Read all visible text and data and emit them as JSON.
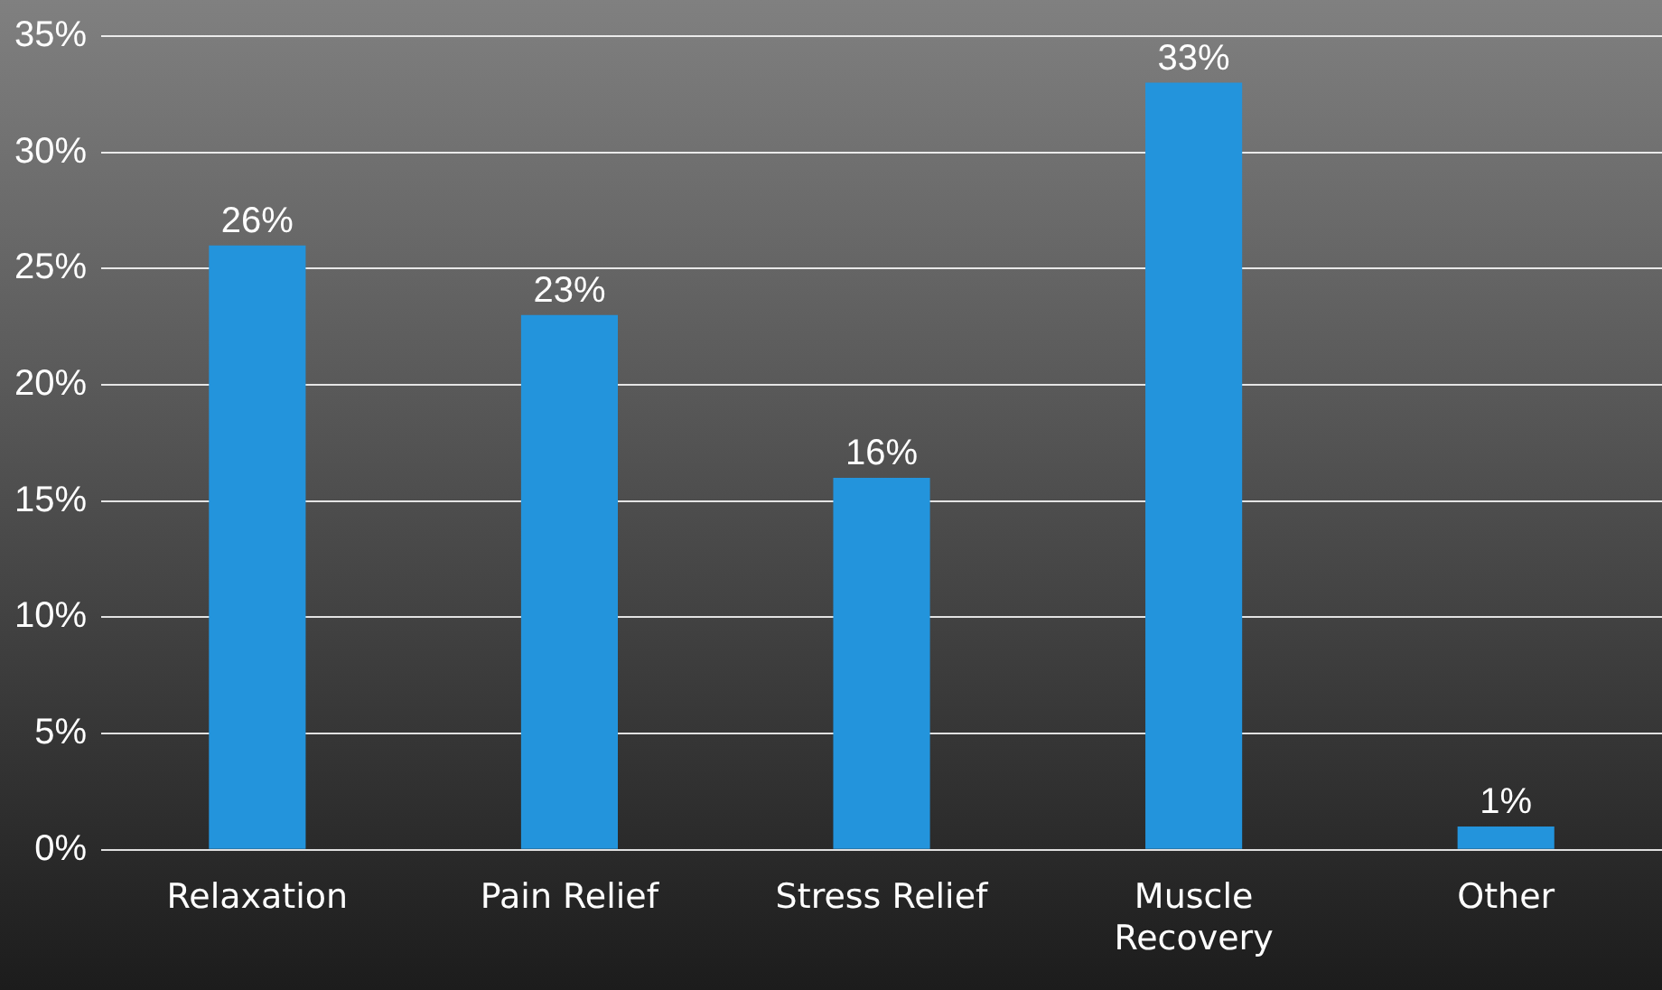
{
  "chart_data": {
    "type": "bar",
    "categories": [
      "Relaxation",
      "Pain Relief",
      "Stress Relief",
      "Muscle Recovery",
      "Other"
    ],
    "values": [
      26,
      23,
      16,
      33,
      1
    ],
    "value_labels": [
      "26%",
      "23%",
      "16%",
      "33%",
      "1%"
    ],
    "color": "#2394dc",
    "ylim": [
      0,
      35
    ],
    "yticks": [
      {
        "value": 0,
        "label": "0%"
      },
      {
        "value": 5,
        "label": "5%"
      },
      {
        "value": 10,
        "label": "10%"
      },
      {
        "value": 15,
        "label": "15%"
      },
      {
        "value": 20,
        "label": "20%"
      },
      {
        "value": 25,
        "label": "25%"
      },
      {
        "value": 30,
        "label": "30%"
      },
      {
        "value": 35,
        "label": "35%"
      }
    ],
    "grid": "y",
    "legend": false
  }
}
